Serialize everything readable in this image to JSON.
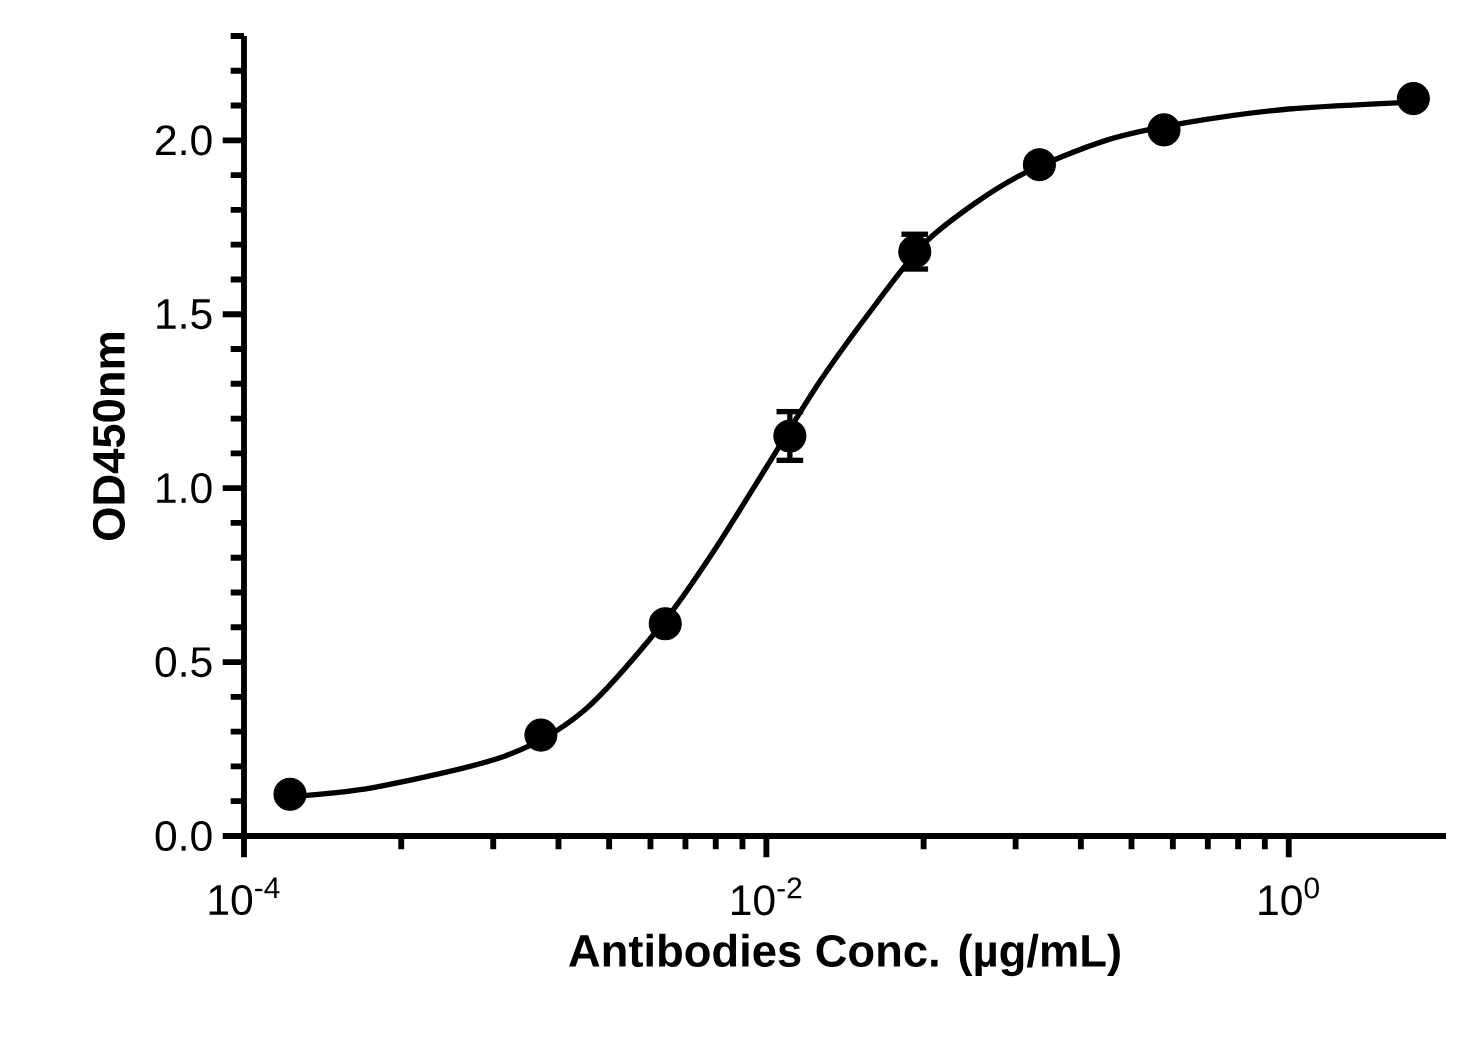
{
  "chart_data": {
    "type": "scatter",
    "xlabel": "Antibodies Conc. (µg/mL)",
    "ylabel": "OD450nm",
    "log": "x",
    "xlim": [
      0.0001,
      4
    ],
    "ylim": [
      0,
      2.3
    ],
    "xticks": [
      {
        "value": 0.0001,
        "label": "10$^{-4}$"
      },
      {
        "value": 0.0004,
        "label": null
      },
      {
        "value": 0.0009,
        "label": null
      },
      {
        "value": 0.0016,
        "label": null
      },
      {
        "value": 0.0025,
        "label": null
      },
      {
        "value": 0.0036,
        "label": null
      },
      {
        "value": 0.0049,
        "label": null
      },
      {
        "value": 0.0064,
        "label": null
      },
      {
        "value": 0.0081,
        "label": null
      },
      {
        "value": 0.01,
        "label": "10$^{-2}$"
      },
      {
        "value": 0.04,
        "label": null
      },
      {
        "value": 0.09,
        "label": null
      },
      {
        "value": 0.16,
        "label": null
      },
      {
        "value": 0.25,
        "label": null
      },
      {
        "value": 0.36,
        "label": null
      },
      {
        "value": 0.49,
        "label": null
      },
      {
        "value": 0.64,
        "label": null
      },
      {
        "value": 0.81,
        "label": null
      },
      {
        "value": 1,
        "label": "10$^{0}$"
      }
    ],
    "yticks": [
      {
        "value": 0,
        "label": "0.0"
      },
      {
        "value": 0.1,
        "label": null
      },
      {
        "value": 0.2,
        "label": null
      },
      {
        "value": 0.3,
        "label": null
      },
      {
        "value": 0.4,
        "label": null
      },
      0.5,
      {
        "value": 0.6,
        "label": null
      },
      {
        "value": 0.7,
        "label": null
      },
      {
        "value": 0.8,
        "label": null
      },
      {
        "value": 0.9,
        "label": null
      },
      {
        "value": 1,
        "label": "1.0"
      },
      {
        "value": 1.1,
        "label": null
      },
      {
        "value": 1.2,
        "label": null
      },
      {
        "value": 1.3,
        "label": null
      },
      {
        "value": 1.4,
        "label": null
      },
      1.5,
      {
        "value": 1.6,
        "label": null
      },
      {
        "value": 1.7,
        "label": null
      },
      {
        "value": 1.8,
        "label": null
      },
      {
        "value": 1.9,
        "label": null
      },
      {
        "value": 2,
        "label": "2.0"
      },
      {
        "value": 2.1,
        "label": null
      },
      {
        "value": 2.2,
        "label": null
      },
      {
        "value": 2.3,
        "label": null
      }
    ],
    "series": [
      {
        "type": "line",
        "color": "#000000",
        "marker": "none",
        "line_style": "solid",
        "x": [
          0.000132,
          0.000316,
          0.001,
          0.002,
          0.004,
          0.0063,
          0.01,
          0.0158,
          0.0251,
          0.0398,
          0.0631,
          0.1,
          0.2,
          0.4,
          1,
          3
        ],
        "values": [
          0.11,
          0.14,
          0.23,
          0.36,
          0.61,
          0.82,
          1.06,
          1.3,
          1.51,
          1.7,
          1.82,
          1.91,
          2.0,
          2.05,
          2.09,
          2.11
        ]
      },
      {
        "type": "scatter",
        "color": "#000000",
        "marker": "circle",
        "x": [
          0.00015,
          0.00137,
          0.0041,
          0.0123,
          0.037,
          0.111,
          0.333,
          3
        ],
        "values": [
          0.12,
          0.29,
          0.61,
          1.15,
          1.68,
          1.93,
          2.03,
          2.12
        ],
        "errors": [
          null,
          null,
          null,
          0.07,
          0.05,
          null,
          null,
          null
        ]
      }
    ]
  }
}
